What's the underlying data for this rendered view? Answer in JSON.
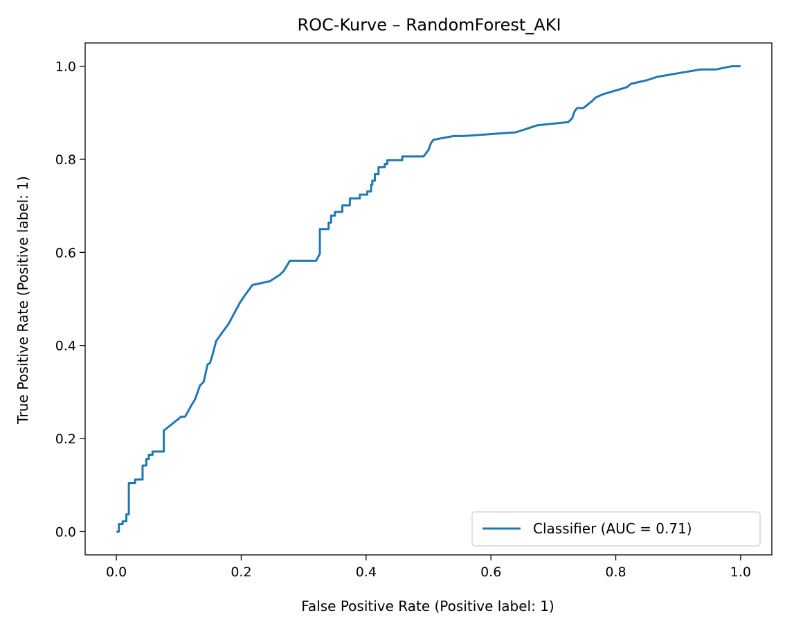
{
  "chart_data": {
    "type": "line",
    "title": "ROC-Kurve – RandomForest_AKI",
    "xlabel": "False Positive Rate (Positive label: 1)",
    "ylabel": "True Positive Rate (Positive label: 1)",
    "xlim": [
      -0.05,
      1.05
    ],
    "ylim": [
      -0.05,
      1.05
    ],
    "x_ticks": [
      0.0,
      0.2,
      0.4,
      0.6,
      0.8,
      1.0
    ],
    "x_tick_labels": [
      "0.0",
      "0.2",
      "0.4",
      "0.6",
      "0.8",
      "1.0"
    ],
    "y_ticks": [
      0.0,
      0.2,
      0.4,
      0.6,
      0.8,
      1.0
    ],
    "y_tick_labels": [
      "0.0",
      "0.2",
      "0.4",
      "0.6",
      "0.8",
      "1.0"
    ],
    "grid": false,
    "legend_position": "lower-right",
    "series": [
      {
        "name": "Classifier (AUC = 0.71)",
        "color": "#1f77b4",
        "x": [
          0.0,
          0.004,
          0.004,
          0.01,
          0.01,
          0.016,
          0.016,
          0.02,
          0.02,
          0.03,
          0.03,
          0.042,
          0.042,
          0.048,
          0.048,
          0.052,
          0.052,
          0.058,
          0.058,
          0.076,
          0.076,
          0.104,
          0.11,
          0.114,
          0.114,
          0.12,
          0.12,
          0.126,
          0.126,
          0.134,
          0.134,
          0.14,
          0.14,
          0.146,
          0.146,
          0.15,
          0.15,
          0.154,
          0.154,
          0.16,
          0.16,
          0.18,
          0.18,
          0.198,
          0.198,
          0.206,
          0.206,
          0.218,
          0.218,
          0.246,
          0.246,
          0.254,
          0.254,
          0.262,
          0.262,
          0.268,
          0.268,
          0.278,
          0.278,
          0.32,
          0.326,
          0.326,
          0.34,
          0.34,
          0.344,
          0.344,
          0.35,
          0.35,
          0.362,
          0.362,
          0.374,
          0.374,
          0.39,
          0.39,
          0.402,
          0.402,
          0.408,
          0.408,
          0.41,
          0.41,
          0.414,
          0.414,
          0.42,
          0.42,
          0.43,
          0.43,
          0.434,
          0.434,
          0.458,
          0.458,
          0.492,
          0.5,
          0.5,
          0.504,
          0.504,
          0.508,
          0.508,
          0.54,
          0.54,
          0.556,
          0.556,
          0.64,
          0.64,
          0.674,
          0.674,
          0.724,
          0.724,
          0.73,
          0.73,
          0.734,
          0.734,
          0.738,
          0.738,
          0.748,
          0.748,
          0.762,
          0.762,
          0.768,
          0.768,
          0.78,
          0.78,
          0.818,
          0.818,
          0.824,
          0.824,
          0.85,
          0.85,
          0.866,
          0.866,
          0.9,
          0.9,
          0.936,
          0.936,
          0.96,
          0.986,
          1.0
        ],
        "y": [
          0.0,
          0.0,
          0.016,
          0.016,
          0.022,
          0.022,
          0.037,
          0.037,
          0.104,
          0.104,
          0.112,
          0.112,
          0.142,
          0.142,
          0.156,
          0.156,
          0.165,
          0.165,
          0.172,
          0.172,
          0.217,
          0.247,
          0.247,
          0.256,
          0.256,
          0.271,
          0.271,
          0.284,
          0.284,
          0.314,
          0.314,
          0.322,
          0.322,
          0.359,
          0.359,
          0.362,
          0.362,
          0.38,
          0.38,
          0.41,
          0.41,
          0.447,
          0.447,
          0.492,
          0.492,
          0.508,
          0.508,
          0.53,
          0.53,
          0.538,
          0.538,
          0.545,
          0.545,
          0.552,
          0.552,
          0.56,
          0.56,
          0.582,
          0.582,
          0.582,
          0.597,
          0.65,
          0.65,
          0.664,
          0.664,
          0.679,
          0.679,
          0.687,
          0.687,
          0.701,
          0.701,
          0.716,
          0.716,
          0.724,
          0.724,
          0.731,
          0.731,
          0.745,
          0.745,
          0.754,
          0.754,
          0.768,
          0.768,
          0.783,
          0.783,
          0.79,
          0.79,
          0.798,
          0.798,
          0.806,
          0.806,
          0.82,
          0.82,
          0.835,
          0.835,
          0.842,
          0.842,
          0.85,
          0.85,
          0.85,
          0.85,
          0.858,
          0.858,
          0.873,
          0.873,
          0.88,
          0.88,
          0.888,
          0.888,
          0.903,
          0.903,
          0.91,
          0.91,
          0.91,
          0.91,
          0.925,
          0.925,
          0.933,
          0.933,
          0.94,
          0.94,
          0.955,
          0.955,
          0.962,
          0.962,
          0.97,
          0.97,
          0.977,
          0.977,
          0.985,
          0.985,
          0.993,
          0.993,
          0.993,
          1.0,
          1.0
        ]
      }
    ]
  }
}
